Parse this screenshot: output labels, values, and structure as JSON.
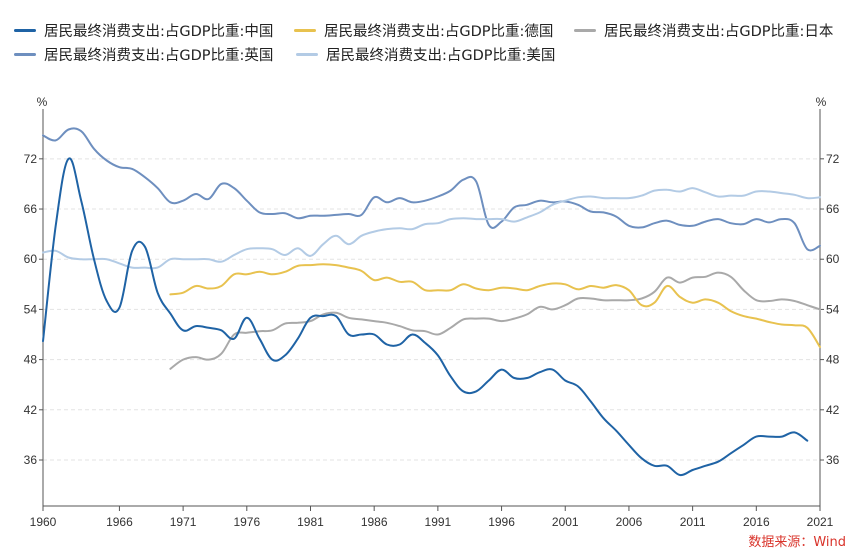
{
  "chart_data": {
    "type": "line",
    "unit_left": "%",
    "unit_right": "%",
    "x_ticks": [
      1960,
      1966,
      1971,
      1976,
      1981,
      1986,
      1991,
      1996,
      2001,
      2006,
      2011,
      2016,
      2021
    ],
    "y_ticks": [
      36,
      42,
      48,
      54,
      60,
      66,
      72
    ],
    "xlim": [
      1960,
      2021
    ],
    "ylim": [
      30.5,
      77
    ],
    "grid": true,
    "legend_position": "top",
    "series": [
      {
        "name": "居民最终消费支出:占GDP比重:中国",
        "color": "#1f63a5",
        "points": [
          [
            1960,
            50.2
          ],
          [
            1961,
            64
          ],
          [
            1962,
            72
          ],
          [
            1963,
            67
          ],
          [
            1964,
            60
          ],
          [
            1965,
            55
          ],
          [
            1966,
            54.2
          ],
          [
            1967,
            61
          ],
          [
            1968,
            61.5
          ],
          [
            1969,
            56
          ],
          [
            1970,
            53.5
          ],
          [
            1971,
            51.5
          ],
          [
            1972,
            52
          ],
          [
            1973,
            51.8
          ],
          [
            1974,
            51.5
          ],
          [
            1975,
            50.5
          ],
          [
            1976,
            53
          ],
          [
            1977,
            50.5
          ],
          [
            1978,
            48
          ],
          [
            1979,
            48.5
          ],
          [
            1980,
            50.5
          ],
          [
            1981,
            53
          ],
          [
            1982,
            53.2
          ],
          [
            1983,
            53.2
          ],
          [
            1984,
            51
          ],
          [
            1985,
            51
          ],
          [
            1986,
            51
          ],
          [
            1987,
            49.8
          ],
          [
            1988,
            49.8
          ],
          [
            1989,
            51
          ],
          [
            1990,
            50
          ],
          [
            1991,
            48.5
          ],
          [
            1992,
            46
          ],
          [
            1993,
            44.2
          ],
          [
            1994,
            44.2
          ],
          [
            1995,
            45.5
          ],
          [
            1996,
            46.8
          ],
          [
            1997,
            45.8
          ],
          [
            1998,
            45.8
          ],
          [
            1999,
            46.5
          ],
          [
            2000,
            46.8
          ],
          [
            2001,
            45.5
          ],
          [
            2002,
            44.8
          ],
          [
            2003,
            43
          ],
          [
            2004,
            41
          ],
          [
            2005,
            39.5
          ],
          [
            2006,
            37.8
          ],
          [
            2007,
            36.2
          ],
          [
            2008,
            35.3
          ],
          [
            2009,
            35.3
          ],
          [
            2010,
            34.2
          ],
          [
            2011,
            34.8
          ],
          [
            2012,
            35.3
          ],
          [
            2013,
            35.8
          ],
          [
            2014,
            36.8
          ],
          [
            2015,
            37.8
          ],
          [
            2016,
            38.8
          ],
          [
            2017,
            38.8
          ],
          [
            2018,
            38.8
          ],
          [
            2019,
            39.3
          ],
          [
            2020,
            38.3
          ]
        ]
      },
      {
        "name": "居民最终消费支出:占GDP比重:德国",
        "color": "#e8c24f",
        "points": [
          [
            1970,
            55.8
          ],
          [
            1971,
            56
          ],
          [
            1972,
            56.8
          ],
          [
            1973,
            56.5
          ],
          [
            1974,
            56.8
          ],
          [
            1975,
            58.2
          ],
          [
            1976,
            58.2
          ],
          [
            1977,
            58.5
          ],
          [
            1978,
            58.2
          ],
          [
            1979,
            58.5
          ],
          [
            1980,
            59.2
          ],
          [
            1981,
            59.3
          ],
          [
            1982,
            59.4
          ],
          [
            1983,
            59.3
          ],
          [
            1984,
            59
          ],
          [
            1985,
            58.6
          ],
          [
            1986,
            57.5
          ],
          [
            1987,
            57.8
          ],
          [
            1988,
            57.3
          ],
          [
            1989,
            57.3
          ],
          [
            1990,
            56.3
          ],
          [
            1991,
            56.3
          ],
          [
            1992,
            56.3
          ],
          [
            1993,
            57
          ],
          [
            1994,
            56.5
          ],
          [
            1995,
            56.3
          ],
          [
            1996,
            56.6
          ],
          [
            1997,
            56.5
          ],
          [
            1998,
            56.3
          ],
          [
            1999,
            56.8
          ],
          [
            2000,
            57.1
          ],
          [
            2001,
            57
          ],
          [
            2002,
            56.4
          ],
          [
            2003,
            56.8
          ],
          [
            2004,
            56.6
          ],
          [
            2005,
            56.9
          ],
          [
            2006,
            56.3
          ],
          [
            2007,
            54.5
          ],
          [
            2008,
            54.8
          ],
          [
            2009,
            56.8
          ],
          [
            2010,
            55.5
          ],
          [
            2011,
            54.8
          ],
          [
            2012,
            55.2
          ],
          [
            2013,
            54.8
          ],
          [
            2014,
            53.8
          ],
          [
            2015,
            53.2
          ],
          [
            2016,
            52.9
          ],
          [
            2017,
            52.5
          ],
          [
            2018,
            52.2
          ],
          [
            2019,
            52.1
          ],
          [
            2020,
            51.8
          ],
          [
            2021,
            49.5
          ]
        ]
      },
      {
        "name": "居民最终消费支出:占GDP比重:日本",
        "color": "#a9a9a9",
        "points": [
          [
            1970,
            46.9
          ],
          [
            1971,
            48
          ],
          [
            1972,
            48.3
          ],
          [
            1973,
            48
          ],
          [
            1974,
            48.7
          ],
          [
            1975,
            51
          ],
          [
            1976,
            51.2
          ],
          [
            1977,
            51.4
          ],
          [
            1978,
            51.5
          ],
          [
            1979,
            52.3
          ],
          [
            1980,
            52.4
          ],
          [
            1981,
            52.6
          ],
          [
            1982,
            53.4
          ],
          [
            1983,
            53.6
          ],
          [
            1984,
            53
          ],
          [
            1985,
            52.8
          ],
          [
            1986,
            52.6
          ],
          [
            1987,
            52.4
          ],
          [
            1988,
            52
          ],
          [
            1989,
            51.5
          ],
          [
            1990,
            51.4
          ],
          [
            1991,
            51
          ],
          [
            1992,
            51.8
          ],
          [
            1993,
            52.8
          ],
          [
            1994,
            52.9
          ],
          [
            1995,
            52.9
          ],
          [
            1996,
            52.6
          ],
          [
            1997,
            52.9
          ],
          [
            1998,
            53.4
          ],
          [
            1999,
            54.3
          ],
          [
            2000,
            54
          ],
          [
            2001,
            54.5
          ],
          [
            2002,
            55.3
          ],
          [
            2003,
            55.3
          ],
          [
            2004,
            55.1
          ],
          [
            2005,
            55.1
          ],
          [
            2006,
            55.1
          ],
          [
            2007,
            55.3
          ],
          [
            2008,
            56.1
          ],
          [
            2009,
            57.8
          ],
          [
            2010,
            57.2
          ],
          [
            2011,
            57.8
          ],
          [
            2012,
            57.9
          ],
          [
            2013,
            58.4
          ],
          [
            2014,
            57.9
          ],
          [
            2015,
            56.3
          ],
          [
            2016,
            55.1
          ],
          [
            2017,
            55
          ],
          [
            2018,
            55.2
          ],
          [
            2019,
            55
          ],
          [
            2020,
            54.5
          ],
          [
            2021,
            54
          ]
        ]
      },
      {
        "name": "居民最终消费支出:占GDP比重:英国",
        "color": "#6e8fbf",
        "points": [
          [
            1960,
            74.8
          ],
          [
            1961,
            74.2
          ],
          [
            1962,
            75.5
          ],
          [
            1963,
            75.3
          ],
          [
            1964,
            73.2
          ],
          [
            1965,
            71.8
          ],
          [
            1966,
            71
          ],
          [
            1967,
            70.8
          ],
          [
            1968,
            69.8
          ],
          [
            1969,
            68.5
          ],
          [
            1970,
            66.8
          ],
          [
            1971,
            67
          ],
          [
            1972,
            67.8
          ],
          [
            1973,
            67.2
          ],
          [
            1974,
            69
          ],
          [
            1975,
            68.5
          ],
          [
            1976,
            67
          ],
          [
            1977,
            65.6
          ],
          [
            1978,
            65.4
          ],
          [
            1979,
            65.5
          ],
          [
            1980,
            64.9
          ],
          [
            1981,
            65.2
          ],
          [
            1982,
            65.2
          ],
          [
            1983,
            65.3
          ],
          [
            1984,
            65.4
          ],
          [
            1985,
            65.3
          ],
          [
            1986,
            67.4
          ],
          [
            1987,
            66.8
          ],
          [
            1988,
            67.3
          ],
          [
            1989,
            66.8
          ],
          [
            1990,
            67
          ],
          [
            1991,
            67.5
          ],
          [
            1992,
            68.2
          ],
          [
            1993,
            69.5
          ],
          [
            1994,
            69.3
          ],
          [
            1995,
            64.1
          ],
          [
            1996,
            64.5
          ],
          [
            1997,
            66.2
          ],
          [
            1998,
            66.5
          ],
          [
            1999,
            67
          ],
          [
            2000,
            66.8
          ],
          [
            2001,
            66.9
          ],
          [
            2002,
            66.5
          ],
          [
            2003,
            65.7
          ],
          [
            2004,
            65.6
          ],
          [
            2005,
            65.1
          ],
          [
            2006,
            64
          ],
          [
            2007,
            63.8
          ],
          [
            2008,
            64.3
          ],
          [
            2009,
            64.6
          ],
          [
            2010,
            64.1
          ],
          [
            2011,
            64
          ],
          [
            2012,
            64.5
          ],
          [
            2013,
            64.8
          ],
          [
            2014,
            64.3
          ],
          [
            2015,
            64.2
          ],
          [
            2016,
            64.8
          ],
          [
            2017,
            64.4
          ],
          [
            2018,
            64.8
          ],
          [
            2019,
            64.3
          ],
          [
            2020,
            61.2
          ],
          [
            2021,
            61.6
          ]
        ]
      },
      {
        "name": "居民最终消费支出:占GDP比重:美国",
        "color": "#b3cbe5",
        "points": [
          [
            1960,
            60.8
          ],
          [
            1961,
            61
          ],
          [
            1962,
            60.2
          ],
          [
            1963,
            60
          ],
          [
            1964,
            60
          ],
          [
            1965,
            60
          ],
          [
            1966,
            59.5
          ],
          [
            1967,
            59
          ],
          [
            1968,
            59
          ],
          [
            1969,
            59
          ],
          [
            1970,
            60
          ],
          [
            1971,
            60
          ],
          [
            1972,
            60
          ],
          [
            1973,
            60
          ],
          [
            1974,
            59.7
          ],
          [
            1975,
            60.5
          ],
          [
            1976,
            61.2
          ],
          [
            1977,
            61.3
          ],
          [
            1978,
            61.2
          ],
          [
            1979,
            60.5
          ],
          [
            1980,
            61.3
          ],
          [
            1981,
            60.4
          ],
          [
            1982,
            61.8
          ],
          [
            1983,
            62.8
          ],
          [
            1984,
            61.8
          ],
          [
            1985,
            62.8
          ],
          [
            1986,
            63.3
          ],
          [
            1987,
            63.6
          ],
          [
            1988,
            63.7
          ],
          [
            1989,
            63.6
          ],
          [
            1990,
            64.2
          ],
          [
            1991,
            64.3
          ],
          [
            1992,
            64.8
          ],
          [
            1993,
            64.9
          ],
          [
            1994,
            64.8
          ],
          [
            1995,
            64.8
          ],
          [
            1996,
            64.8
          ],
          [
            1997,
            64.5
          ],
          [
            1998,
            65
          ],
          [
            1999,
            65.6
          ],
          [
            2000,
            66.5
          ],
          [
            2001,
            67
          ],
          [
            2002,
            67.4
          ],
          [
            2003,
            67.5
          ],
          [
            2004,
            67.3
          ],
          [
            2005,
            67.3
          ],
          [
            2006,
            67.3
          ],
          [
            2007,
            67.6
          ],
          [
            2008,
            68.2
          ],
          [
            2009,
            68.3
          ],
          [
            2010,
            68.1
          ],
          [
            2011,
            68.5
          ],
          [
            2012,
            68
          ],
          [
            2013,
            67.5
          ],
          [
            2014,
            67.6
          ],
          [
            2015,
            67.6
          ],
          [
            2016,
            68.1
          ],
          [
            2017,
            68.1
          ],
          [
            2018,
            67.9
          ],
          [
            2019,
            67.7
          ],
          [
            2020,
            67.3
          ],
          [
            2021,
            67.4
          ]
        ]
      }
    ]
  },
  "source_text": "数据来源：Wind"
}
